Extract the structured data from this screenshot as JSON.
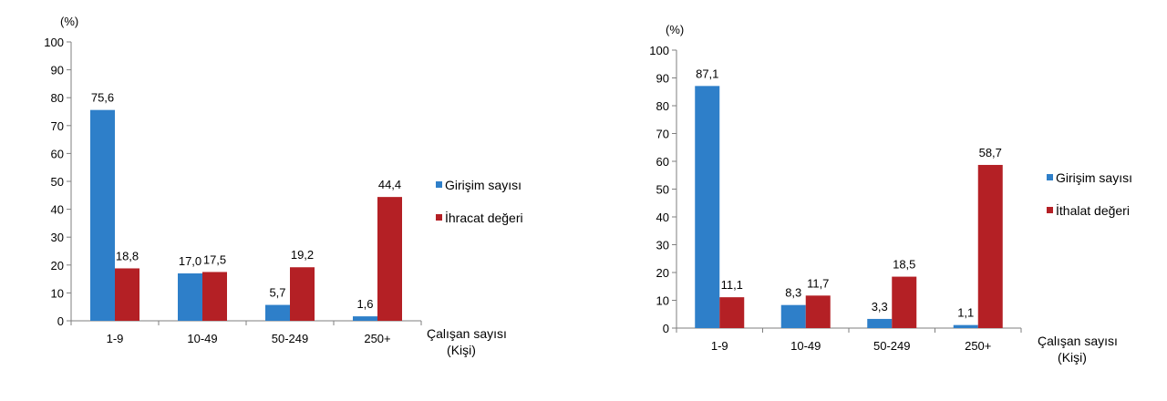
{
  "colors": {
    "blue": "#2e7fc9",
    "red": "#b42025"
  },
  "chart_data": [
    {
      "type": "bar",
      "unit_label": "(%)",
      "categories": [
        "1-9",
        "10-49",
        "50-249",
        "250+"
      ],
      "series": [
        {
          "name": "Girişim sayısı",
          "values": [
            75.6,
            17.0,
            5.7,
            1.6
          ],
          "labels": [
            "75,6",
            "17,0",
            "5,7",
            "1,6"
          ]
        },
        {
          "name": "İhracat değeri",
          "values": [
            18.8,
            17.5,
            19.2,
            44.4
          ],
          "labels": [
            "18,8",
            "17,5",
            "19,2",
            "44,4"
          ]
        }
      ],
      "y_ticks": [
        "0",
        "10",
        "20",
        "30",
        "40",
        "50",
        "60",
        "70",
        "80",
        "90",
        "100"
      ],
      "ylim": [
        0,
        100
      ],
      "xlabel_line1": "Çalışan sayısı",
      "xlabel_line2": "(Kişi)",
      "legend": "right"
    },
    {
      "type": "bar",
      "unit_label": "(%)",
      "categories": [
        "1-9",
        "10-49",
        "50-249",
        "250+"
      ],
      "series": [
        {
          "name": "Girişim sayısı",
          "values": [
            87.1,
            8.3,
            3.3,
            1.1
          ],
          "labels": [
            "87,1",
            "8,3",
            "3,3",
            "1,1"
          ]
        },
        {
          "name": "İthalat değeri",
          "values": [
            11.1,
            11.7,
            18.5,
            58.7
          ],
          "labels": [
            "11,1",
            "11,7",
            "18,5",
            "58,7"
          ]
        }
      ],
      "y_ticks": [
        "0",
        "10",
        "20",
        "30",
        "40",
        "50",
        "60",
        "70",
        "80",
        "90",
        "100"
      ],
      "ylim": [
        0,
        100
      ],
      "xlabel_line1": "Çalışan sayısı",
      "xlabel_line2": "(Kişi)",
      "legend": "right"
    }
  ]
}
